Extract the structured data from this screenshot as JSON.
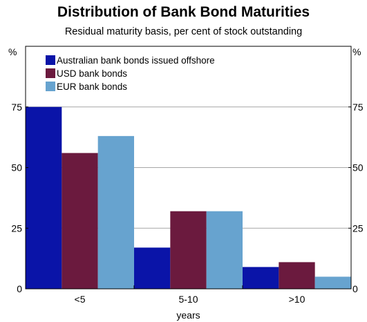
{
  "chart_data": {
    "type": "bar",
    "title": "Distribution of Bank Bond Maturities",
    "subtitle": "Residual maturity basis, per cent of stock outstanding",
    "xlabel": "years",
    "ylabel_left": "%",
    "ylabel_right": "%",
    "ylim": [
      0,
      100
    ],
    "yticks": [
      0,
      25,
      50,
      75
    ],
    "grid": true,
    "legend_position": "top-left",
    "categories": [
      "<5",
      "5-10",
      ">10"
    ],
    "series": [
      {
        "name": "Australian bank bonds issued offshore",
        "color": "#0a14a8",
        "values": [
          75,
          17,
          9
        ]
      },
      {
        "name": "USD bank bonds",
        "color": "#6b1a3e",
        "values": [
          56,
          32,
          11
        ]
      },
      {
        "name": "EUR bank bonds",
        "color": "#67a3cf",
        "values": [
          63,
          32,
          5
        ]
      }
    ]
  }
}
